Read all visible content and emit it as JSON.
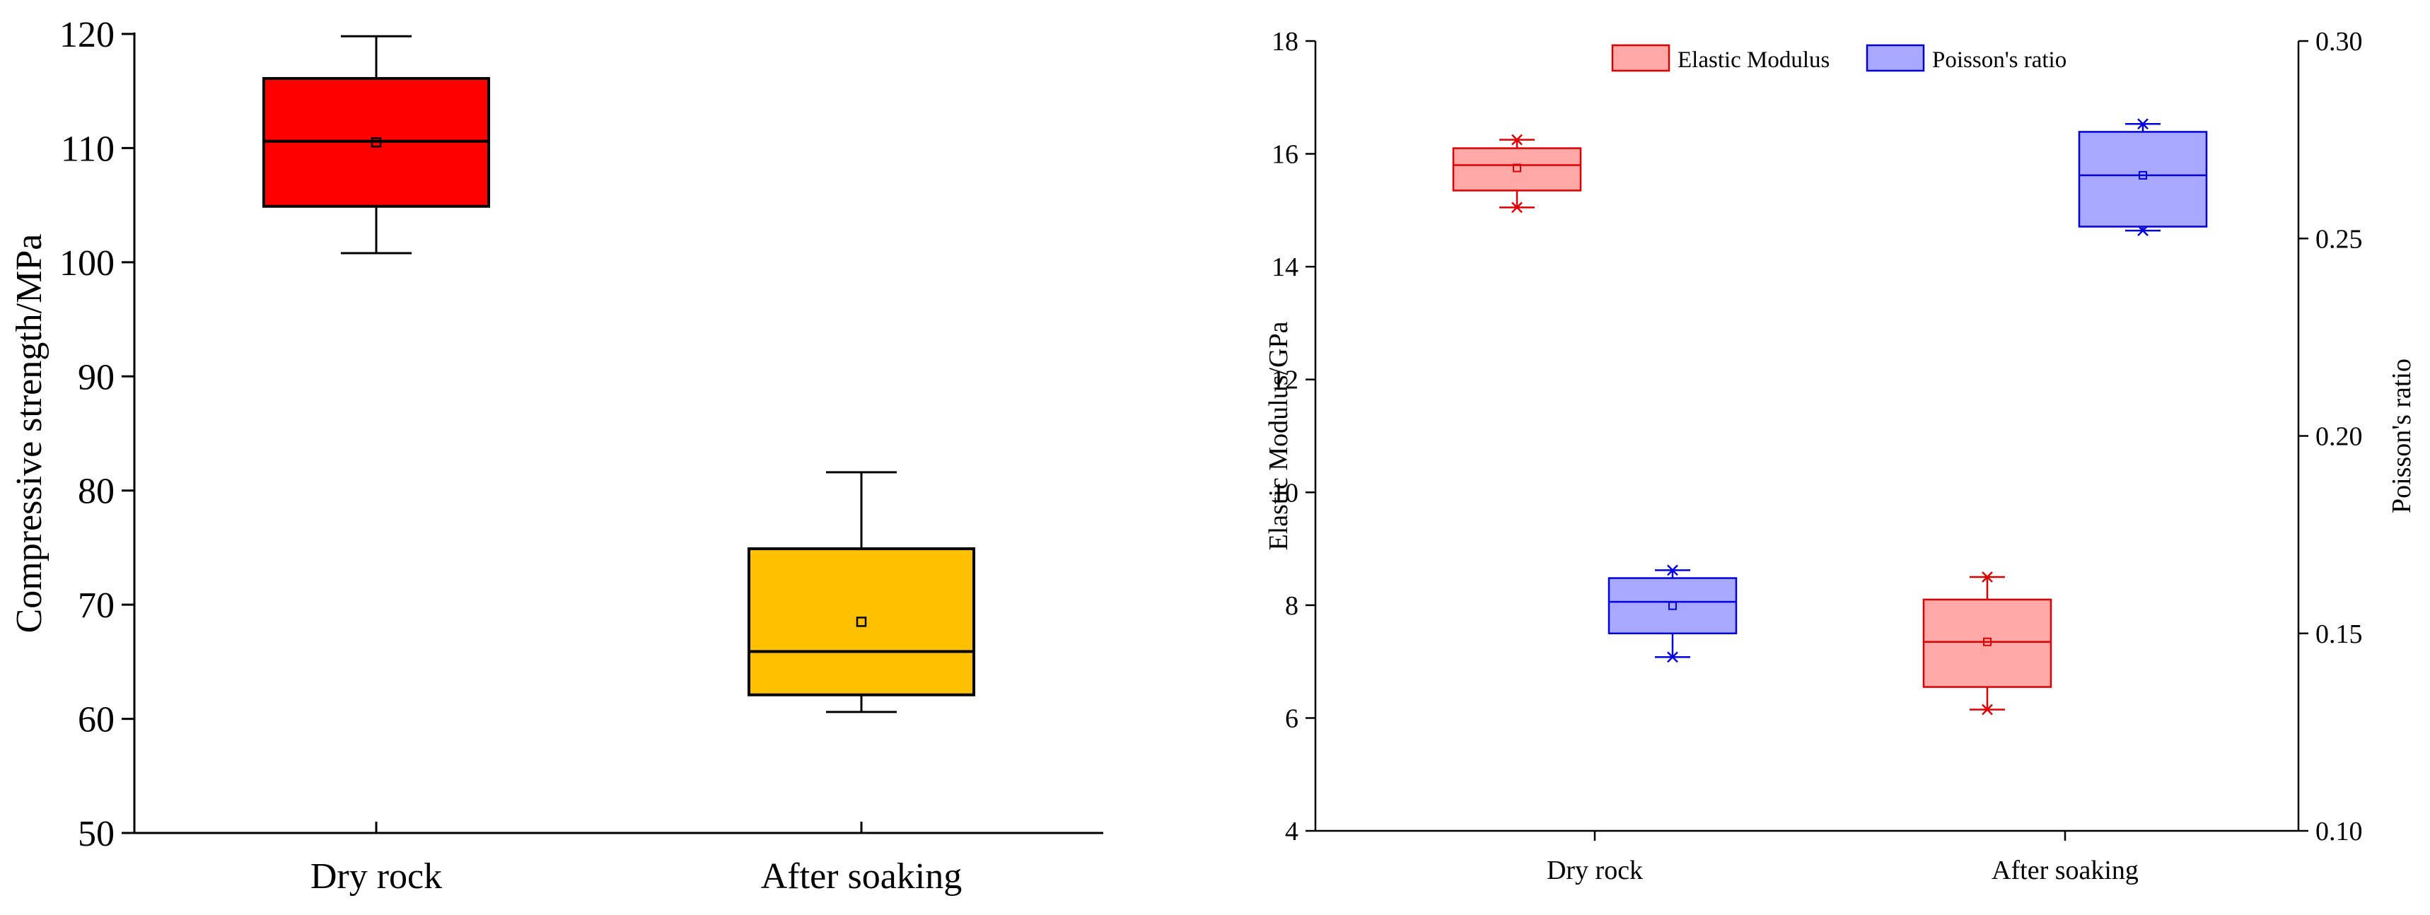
{
  "chart_data": [
    {
      "type": "box",
      "title": "",
      "xlabel": "",
      "ylabel": "Compressive strength/MPa",
      "ylim": [
        50,
        120
      ],
      "yticks": [
        50,
        60,
        70,
        80,
        90,
        100,
        110,
        120
      ],
      "categories": [
        "Dry rock",
        "After soaking"
      ],
      "boxes": [
        {
          "category": "Dry rock",
          "min": 100.8,
          "q1": 104.9,
          "median": 110.6,
          "q3": 116.1,
          "max": 119.8,
          "mean": 110.5,
          "color": "#ff0000"
        },
        {
          "category": "After soaking",
          "min": 60.6,
          "q1": 62.1,
          "median": 65.9,
          "q3": 74.9,
          "max": 81.6,
          "mean": 68.5,
          "color": "#ffc000"
        }
      ]
    },
    {
      "type": "box",
      "title": "",
      "xlabel": "",
      "ylabel": "Elastic Modulus/GPa",
      "ylim": [
        4,
        18
      ],
      "yticks": [
        4,
        6,
        8,
        10,
        12,
        14,
        16,
        18
      ],
      "y2label": "Poisson's ratio",
      "y2lim": [
        0.1,
        0.3
      ],
      "y2ticks": [
        "0.10",
        "0.15",
        "0.20",
        "0.25",
        "0.30"
      ],
      "categories": [
        "Dry rock",
        "After soaking"
      ],
      "legend_position": "top-center",
      "legend": [
        "Elastic Modulus",
        "Poisson's ratio"
      ],
      "series": [
        {
          "name": "Elastic Modulus",
          "axis": "left",
          "fill": "#ffa8a8",
          "stroke": "#e00000",
          "boxes": [
            {
              "category": "Dry rock",
              "min": 15.05,
              "q1": 15.35,
              "median": 15.8,
              "q3": 16.1,
              "max": 16.25,
              "mean": 15.75
            },
            {
              "category": "After soaking",
              "min": 6.15,
              "q1": 6.55,
              "median": 7.35,
              "q3": 8.1,
              "max": 8.5,
              "mean": 7.35
            }
          ]
        },
        {
          "name": "Poisson's ratio",
          "axis": "right",
          "fill": "#a8a8ff",
          "stroke": "#0000e0",
          "boxes": [
            {
              "category": "Dry rock",
              "min": 0.144,
              "q1": 0.15,
              "median": 0.158,
              "q3": 0.164,
              "max": 0.166,
              "mean": 0.157
            },
            {
              "category": "After soaking",
              "min": 0.252,
              "q1": 0.253,
              "median": 0.266,
              "q3": 0.277,
              "max": 0.279,
              "mean": 0.266
            }
          ]
        }
      ]
    }
  ]
}
